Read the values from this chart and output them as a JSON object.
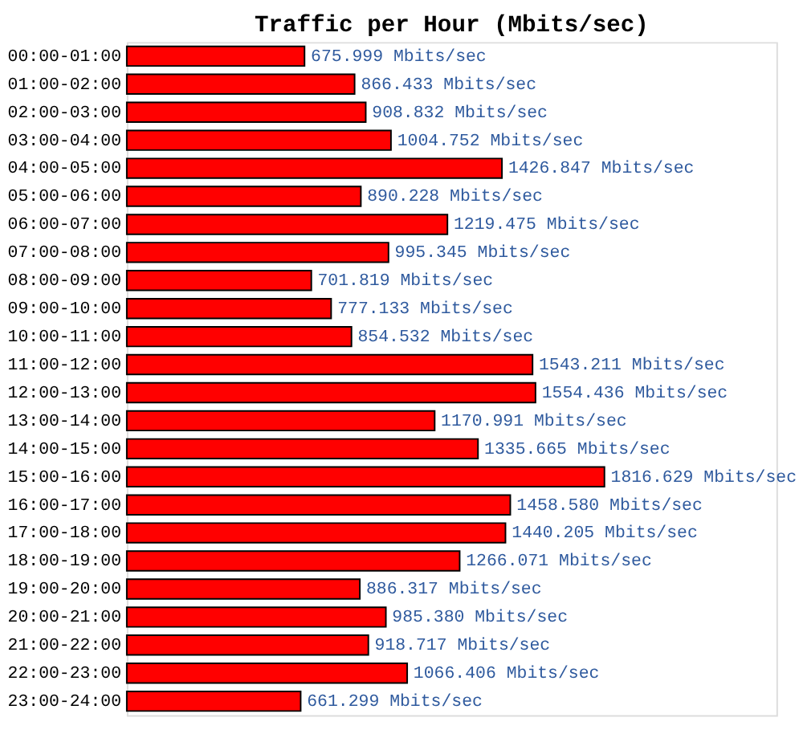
{
  "chart_data": {
    "type": "bar",
    "orientation": "horizontal",
    "title": "Traffic per Hour (Mbits/sec)",
    "categories": [
      "00:00-01:00",
      "01:00-02:00",
      "02:00-03:00",
      "03:00-04:00",
      "04:00-05:00",
      "05:00-06:00",
      "06:00-07:00",
      "07:00-08:00",
      "08:00-09:00",
      "09:00-10:00",
      "10:00-11:00",
      "11:00-12:00",
      "12:00-13:00",
      "13:00-14:00",
      "14:00-15:00",
      "15:00-16:00",
      "16:00-17:00",
      "17:00-18:00",
      "18:00-19:00",
      "19:00-20:00",
      "20:00-21:00",
      "21:00-22:00",
      "22:00-23:00",
      "23:00-24:00"
    ],
    "values": [
      675.999,
      866.433,
      908.832,
      1004.752,
      1426.847,
      890.228,
      1219.475,
      995.345,
      701.819,
      777.133,
      854.532,
      1543.211,
      1554.436,
      1170.991,
      1335.665,
      1816.629,
      1458.58,
      1440.205,
      1266.071,
      886.317,
      985.38,
      918.717,
      1066.406,
      661.299
    ],
    "value_labels": [
      "675.999 Mbits/sec",
      "866.433 Mbits/sec",
      "908.832 Mbits/sec",
      "1004.752 Mbits/sec",
      "1426.847 Mbits/sec",
      "890.228 Mbits/sec",
      "1219.475 Mbits/sec",
      "995.345 Mbits/sec",
      "701.819 Mbits/sec",
      "777.133 Mbits/sec",
      "854.532 Mbits/sec",
      "1543.211 Mbits/sec",
      "1554.436 Mbits/sec",
      "1170.991 Mbits/sec",
      "1335.665 Mbits/sec",
      "1816.629 Mbits/sec",
      "1458.580 Mbits/sec",
      "1440.205 Mbits/sec",
      "1266.071 Mbits/sec",
      "886.317 Mbits/sec",
      "985.380 Mbits/sec",
      "918.717 Mbits/sec",
      "1066.406 Mbits/sec",
      "661.299 Mbits/sec"
    ],
    "color": "#ff0000",
    "tick_labels": "y",
    "grid": false
  }
}
